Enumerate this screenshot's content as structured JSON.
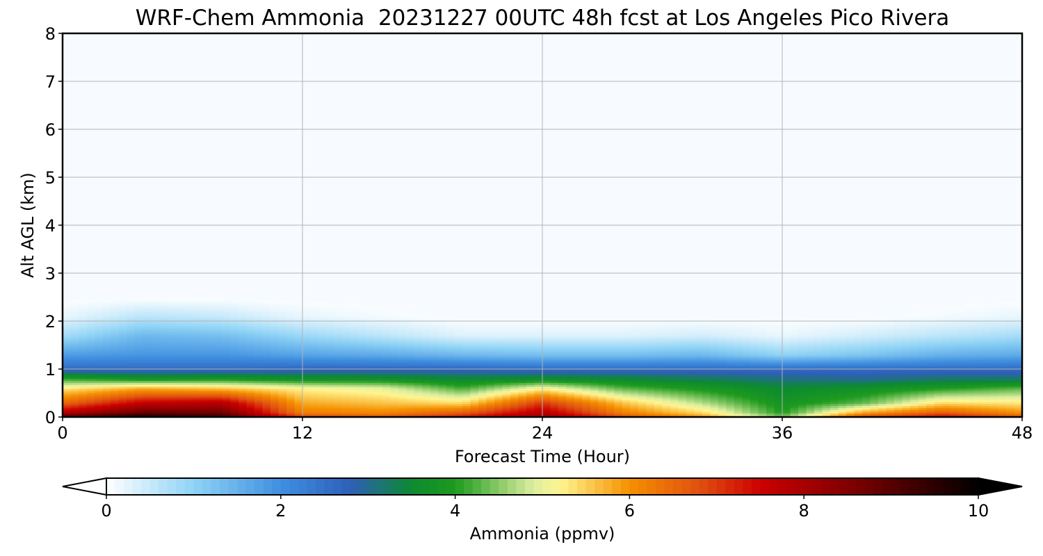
{
  "title": "WRF-Chem Ammonia  20231227 00UTC 48h fcst at Los Angeles Pico Rivera",
  "chart_data": {
    "type": "heatmap",
    "title": "WRF-Chem Ammonia  20231227 00UTC 48h fcst at Los Angeles Pico Rivera",
    "xlabel": "Forecast Time (Hour)",
    "ylabel": "Alt AGL (km)",
    "xlim": [
      0,
      48
    ],
    "ylim": [
      0,
      8
    ],
    "x_ticks": [
      "0",
      "12",
      "24",
      "36",
      "48"
    ],
    "y_ticks": [
      "0",
      "1",
      "2",
      "3",
      "4",
      "5",
      "6",
      "7",
      "8"
    ],
    "grid": true,
    "colorbar": {
      "label": "Ammonia  (ppmv)",
      "range": [
        0,
        10
      ],
      "ticks": [
        "0",
        "2",
        "4",
        "6",
        "8",
        "10"
      ],
      "extend": "both",
      "stops": [
        {
          "value": 0,
          "color": "#ffffff"
        },
        {
          "value": 1,
          "color": "#8fd3f5"
        },
        {
          "value": 2,
          "color": "#3f8fe0"
        },
        {
          "value": 2.8,
          "color": "#2e5fb8"
        },
        {
          "value": 3.5,
          "color": "#0c8a30"
        },
        {
          "value": 4,
          "color": "#1e9a1e"
        },
        {
          "value": 4.9,
          "color": "#ddeea0"
        },
        {
          "value": 5.2,
          "color": "#fff590"
        },
        {
          "value": 6,
          "color": "#f59000"
        },
        {
          "value": 6.8,
          "color": "#e05010"
        },
        {
          "value": 7.5,
          "color": "#cc0000"
        },
        {
          "value": 8.6,
          "color": "#7a0000"
        },
        {
          "value": 10,
          "color": "#000000"
        }
      ]
    },
    "profiles": {
      "hours": [
        0,
        4,
        8,
        12,
        16,
        20,
        24,
        28,
        32,
        36,
        40,
        44,
        48
      ],
      "alt_km": [
        0,
        0.1,
        0.3,
        0.6,
        0.8,
        1.0,
        1.3,
        1.7,
        2.1,
        2.5
      ],
      "ppmv": [
        [
          9.3,
          7.8,
          6.5,
          5.3,
          4.1,
          2.6,
          1.8,
          0.8,
          0.2,
          0
        ],
        [
          9.9,
          8.8,
          7.6,
          5.8,
          3.8,
          2.6,
          1.9,
          1.4,
          0.6,
          0
        ],
        [
          9.5,
          8.7,
          7.8,
          5.6,
          3.9,
          2.6,
          1.9,
          1.3,
          0.5,
          0
        ],
        [
          7.0,
          6.2,
          5.8,
          5.2,
          3.7,
          2.7,
          1.7,
          0.9,
          0.2,
          0
        ],
        [
          6.8,
          6.1,
          5.6,
          5.0,
          3.7,
          2.7,
          1.6,
          0.6,
          0.1,
          0
        ],
        [
          7.4,
          6.6,
          5.4,
          4.2,
          3.5,
          2.7,
          1.4,
          0.3,
          0,
          0
        ],
        [
          8.3,
          7.8,
          7.0,
          5.2,
          3.6,
          2.6,
          1.3,
          0.3,
          0,
          0
        ],
        [
          6.9,
          6.2,
          5.6,
          4.3,
          3.5,
          2.6,
          1.3,
          0.3,
          0,
          0
        ],
        [
          6.0,
          5.4,
          4.7,
          3.9,
          3.3,
          2.6,
          1.4,
          0.4,
          0,
          0
        ],
        [
          4.5,
          4.0,
          3.8,
          3.5,
          3.1,
          2.6,
          1.0,
          0.2,
          0,
          0
        ],
        [
          7.0,
          5.8,
          4.3,
          3.7,
          3.0,
          2.6,
          1.2,
          0.4,
          0,
          0
        ],
        [
          7.6,
          6.6,
          5.4,
          4.0,
          3.2,
          2.6,
          1.5,
          0.6,
          0.1,
          0
        ],
        [
          6.8,
          6.0,
          5.3,
          4.3,
          3.2,
          2.6,
          1.6,
          0.8,
          0.2,
          0
        ]
      ]
    }
  }
}
